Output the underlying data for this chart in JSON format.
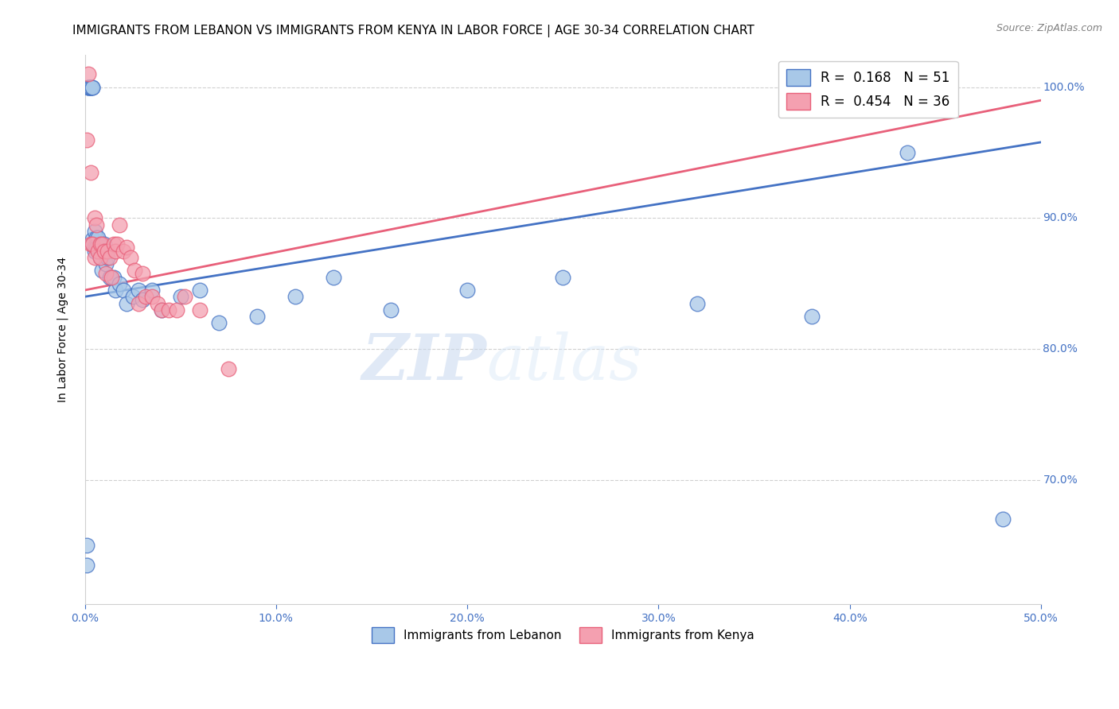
{
  "title": "IMMIGRANTS FROM LEBANON VS IMMIGRANTS FROM KENYA IN LABOR FORCE | AGE 30-34 CORRELATION CHART",
  "source": "Source: ZipAtlas.com",
  "ylabel": "In Labor Force | Age 30-34",
  "xlim": [
    0.0,
    0.5
  ],
  "ylim": [
    0.605,
    1.025
  ],
  "xticks": [
    0.0,
    0.1,
    0.2,
    0.3,
    0.4,
    0.5
  ],
  "xtick_labels": [
    "0.0%",
    "10.0%",
    "20.0%",
    "30.0%",
    "40.0%",
    "50.0%"
  ],
  "yticks": [
    0.7,
    0.8,
    0.9,
    1.0
  ],
  "ytick_labels": [
    "70.0%",
    "80.0%",
    "90.0%",
    "100.0%"
  ],
  "legend_r1": "R =  0.168",
  "legend_n1": "N = 51",
  "legend_r2": "R =  0.454",
  "legend_n2": "N = 36",
  "color_lebanon": "#a8c8e8",
  "color_kenya": "#f4a0b0",
  "color_line_lebanon": "#4472c4",
  "color_line_kenya": "#e8607a",
  "watermark_zip": "ZIP",
  "watermark_atlas": "atlas",
  "lebanon_x": [
    0.001,
    0.001,
    0.002,
    0.002,
    0.002,
    0.003,
    0.003,
    0.003,
    0.004,
    0.004,
    0.004,
    0.004,
    0.005,
    0.005,
    0.005,
    0.006,
    0.006,
    0.007,
    0.007,
    0.008,
    0.008,
    0.009,
    0.009,
    0.01,
    0.01,
    0.011,
    0.012,
    0.013,
    0.015,
    0.016,
    0.018,
    0.02,
    0.022,
    0.025,
    0.028,
    0.03,
    0.035,
    0.04,
    0.05,
    0.06,
    0.07,
    0.09,
    0.11,
    0.13,
    0.16,
    0.2,
    0.25,
    0.32,
    0.38,
    0.43,
    0.48
  ],
  "lebanon_y": [
    0.635,
    0.65,
    1.0,
    1.0,
    1.0,
    1.0,
    1.0,
    1.0,
    1.0,
    1.0,
    0.884,
    0.88,
    0.89,
    0.878,
    0.875,
    0.885,
    0.878,
    0.885,
    0.878,
    0.875,
    0.87,
    0.878,
    0.86,
    0.88,
    0.875,
    0.865,
    0.87,
    0.855,
    0.855,
    0.845,
    0.85,
    0.845,
    0.835,
    0.84,
    0.845,
    0.838,
    0.845,
    0.83,
    0.84,
    0.845,
    0.82,
    0.825,
    0.84,
    0.855,
    0.83,
    0.845,
    0.855,
    0.835,
    0.825,
    0.95,
    0.67
  ],
  "kenya_x": [
    0.001,
    0.002,
    0.003,
    0.003,
    0.004,
    0.005,
    0.005,
    0.006,
    0.007,
    0.008,
    0.008,
    0.009,
    0.01,
    0.011,
    0.012,
    0.013,
    0.014,
    0.015,
    0.016,
    0.017,
    0.018,
    0.02,
    0.022,
    0.024,
    0.026,
    0.028,
    0.03,
    0.032,
    0.035,
    0.038,
    0.04,
    0.044,
    0.048,
    0.052,
    0.06,
    0.075
  ],
  "kenya_y": [
    0.96,
    1.01,
    0.935,
    0.88,
    0.88,
    0.9,
    0.87,
    0.895,
    0.875,
    0.88,
    0.87,
    0.88,
    0.875,
    0.858,
    0.875,
    0.87,
    0.855,
    0.88,
    0.875,
    0.88,
    0.895,
    0.875,
    0.878,
    0.87,
    0.86,
    0.835,
    0.858,
    0.84,
    0.84,
    0.835,
    0.83,
    0.83,
    0.83,
    0.84,
    0.83,
    0.785
  ],
  "blue_line_x": [
    0.0,
    0.5
  ],
  "blue_line_y": [
    0.84,
    0.958
  ],
  "pink_line_x": [
    0.0,
    0.5
  ],
  "pink_line_y": [
    0.845,
    0.99
  ],
  "grid_color": "#d0d0d0",
  "title_fontsize": 11,
  "axis_label_fontsize": 10,
  "tick_fontsize": 10,
  "tick_color": "#4472c4",
  "marker_size": 180
}
